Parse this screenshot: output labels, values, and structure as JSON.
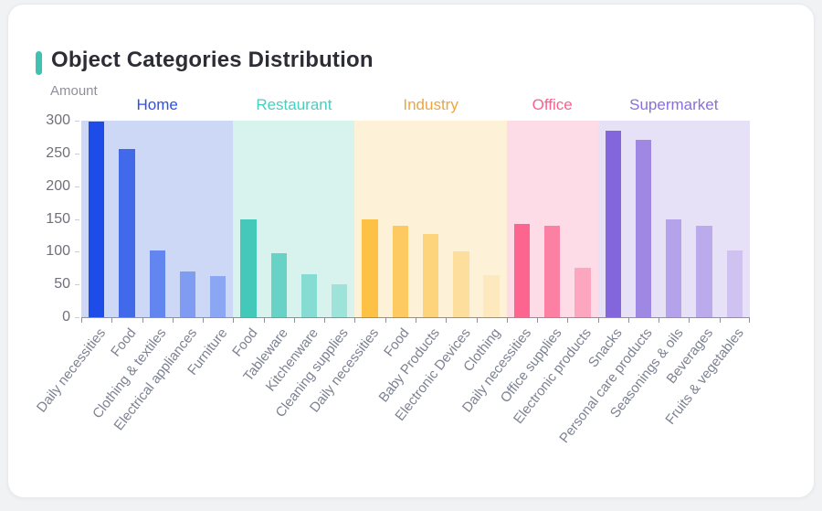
{
  "page": {
    "background": "#f1f2f4",
    "card_background": "#ffffff"
  },
  "header": {
    "title": "Object Categories Distribution",
    "accent_color": "#3fc2b4"
  },
  "chart_data": {
    "type": "bar",
    "title": "Object Categories Distribution",
    "xlabel": "",
    "ylabel": "Amount",
    "ylim": [
      0,
      300
    ],
    "yticks": [
      0,
      50,
      100,
      150,
      200,
      250,
      300
    ],
    "grid": false,
    "legend_position": "none",
    "x_label_rotation_deg": 52,
    "groups": [
      {
        "name": "Home",
        "label_color": "#2d50e8",
        "band_color": "#ccd8f6",
        "bars": [
          {
            "label": "Daily necessities",
            "value": 298,
            "color": "#1d4ce8"
          },
          {
            "label": "Food",
            "value": 257,
            "color": "#4169e9"
          },
          {
            "label": "Clothing & textiles",
            "value": 102,
            "color": "#6385ef"
          },
          {
            "label": "Electrical appliances",
            "value": 70,
            "color": "#7f9cf2"
          },
          {
            "label": "Furniture",
            "value": 63,
            "color": "#8ba6f3"
          }
        ]
      },
      {
        "name": "Restaurant",
        "label_color": "#47cfc0",
        "band_color": "#d8f2ee",
        "bars": [
          {
            "label": "Food",
            "value": 149,
            "color": "#43c8b9"
          },
          {
            "label": "Tableware",
            "value": 97,
            "color": "#68d2c6"
          },
          {
            "label": "Kitchenware",
            "value": 65,
            "color": "#86dcd2"
          },
          {
            "label": "Cleaning supplies",
            "value": 50,
            "color": "#9de3da"
          }
        ]
      },
      {
        "name": "Industry",
        "label_color": "#eda63e",
        "band_color": "#fdf2d7",
        "bars": [
          {
            "label": "Daily necessities",
            "value": 150,
            "color": "#fcc145"
          },
          {
            "label": "Food",
            "value": 139,
            "color": "#fcca60"
          },
          {
            "label": "Baby Products",
            "value": 127,
            "color": "#fdd37c"
          },
          {
            "label": "Electronic Devices",
            "value": 100,
            "color": "#fdde9c"
          },
          {
            "label": "Clothing",
            "value": 64,
            "color": "#fee8bd"
          }
        ]
      },
      {
        "name": "Office",
        "label_color": "#f9618e",
        "band_color": "#fedce7",
        "bars": [
          {
            "label": "Daily necessities",
            "value": 143,
            "color": "#fb6590"
          },
          {
            "label": "Office supplies",
            "value": 139,
            "color": "#fc80a4"
          },
          {
            "label": "Electronic products",
            "value": 75,
            "color": "#fda6bf"
          }
        ]
      },
      {
        "name": "Supermarket",
        "label_color": "#8a6ee0",
        "band_color": "#e7e1f8",
        "bars": [
          {
            "label": "Snacks",
            "value": 285,
            "color": "#8365dc"
          },
          {
            "label": "Personal care products",
            "value": 271,
            "color": "#9f87e4"
          },
          {
            "label": "Seasonings & oils",
            "value": 149,
            "color": "#b4a2ea"
          },
          {
            "label": "Beverages",
            "value": 140,
            "color": "#bcabec"
          },
          {
            "label": "Fruits & vegetables",
            "value": 102,
            "color": "#cfc2f1"
          }
        ]
      }
    ]
  }
}
